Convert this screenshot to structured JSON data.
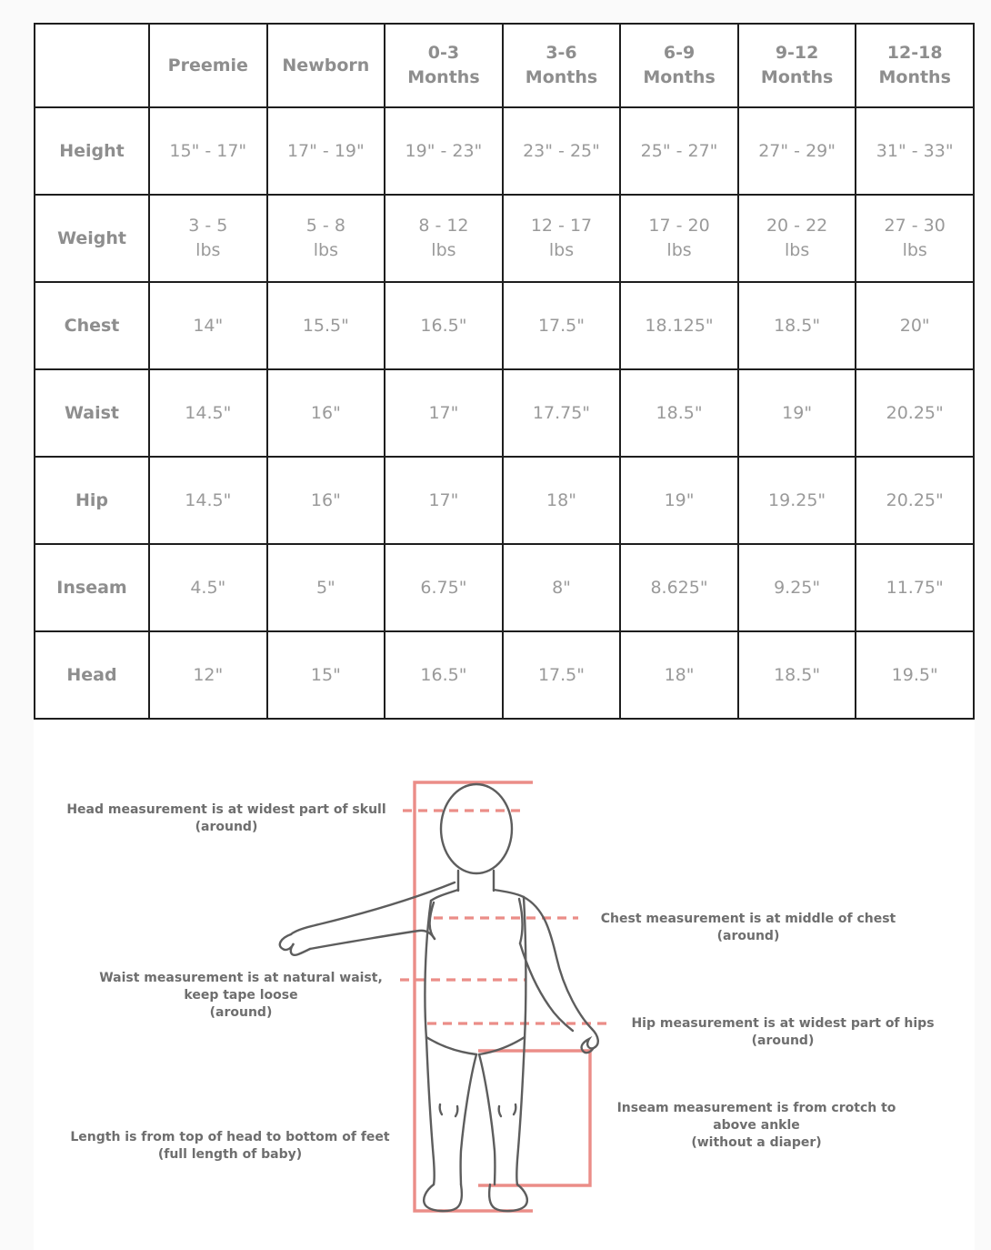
{
  "page": {
    "background_color": "#fafafa",
    "panel_color": "#ffffff",
    "accent_color": "#eb8d88",
    "outline_color": "#5d5d5d",
    "text_color": "#9a9a9a"
  },
  "size_chart": {
    "columns": [
      "",
      "Preemie",
      "Newborn",
      "0-3\nMonths",
      "3-6\nMonths",
      "6-9\nMonths",
      "9-12\nMonths",
      "12-18\nMonths"
    ],
    "rows": [
      {
        "label": "Height",
        "values": [
          "15\" - 17\"",
          "17\" - 19\"",
          "19\" - 23\"",
          "23\" - 25\"",
          "25\" - 27\"",
          "27\" - 29\"",
          "31\" - 33\""
        ]
      },
      {
        "label": "Weight",
        "values": [
          "3 - 5\nlbs",
          "5 - 8\nlbs",
          "8 - 12\nlbs",
          "12 - 17\nlbs",
          "17 - 20\nlbs",
          "20 - 22\nlbs",
          "27 - 30\nlbs"
        ]
      },
      {
        "label": "Chest",
        "values": [
          "14\"",
          "15.5\"",
          "16.5\"",
          "17.5\"",
          "18.125\"",
          "18.5\"",
          "20\""
        ]
      },
      {
        "label": "Waist",
        "values": [
          "14.5\"",
          "16\"",
          "17\"",
          "17.75\"",
          "18.5\"",
          "19\"",
          "20.25\""
        ]
      },
      {
        "label": "Hip",
        "values": [
          "14.5\"",
          "16\"",
          "17\"",
          "18\"",
          "19\"",
          "19.25\"",
          "20.25\""
        ]
      },
      {
        "label": "Inseam",
        "values": [
          "4.5\"",
          "5\"",
          "6.75\"",
          "8\"",
          "8.625\"",
          "9.25\"",
          "11.75\""
        ]
      },
      {
        "label": "Head",
        "values": [
          "12\"",
          "15\"",
          "16.5\"",
          "17.5\"",
          "18\"",
          "18.5\"",
          "19.5\""
        ]
      }
    ]
  },
  "diagram": {
    "notes": {
      "head": "Head measurement is at widest part of skull\n(around)",
      "chest": "Chest measurement is at middle of chest\n(around)",
      "waist": "Waist measurement is at natural waist,\nkeep tape loose\n(around)",
      "hip": "Hip measurement is at widest part of hips\n(around)",
      "inseam": "Inseam measurement is from crotch to\nabove ankle\n(without a diaper)",
      "length": "Length is from top of head to bottom of feet\n(full length of baby)"
    }
  }
}
